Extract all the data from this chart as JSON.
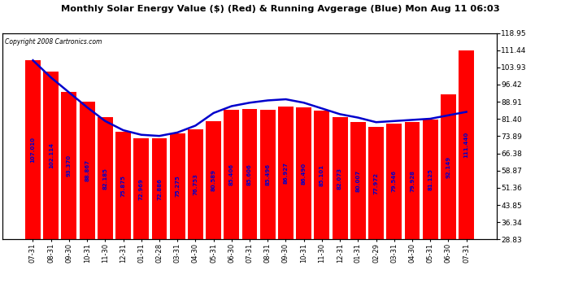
{
  "title": "Monthly Solar Energy Value ($) (Red) & Running Avgerage (Blue) Mon Aug 11 06:03",
  "copyright": "Copyright 2008 Cartronics.com",
  "categories": [
    "07-31",
    "08-31",
    "09-30",
    "10-31",
    "11-30",
    "12-31",
    "01-31",
    "02-28",
    "03-31",
    "04-30",
    "05-31",
    "06-30",
    "07-31",
    "08-31",
    "09-30",
    "10-31",
    "11-30",
    "12-31",
    "01-31",
    "02-29",
    "03-31",
    "04-30",
    "05-31",
    "06-30",
    "07-31"
  ],
  "values": [
    107.01,
    102.114,
    93.37,
    88.867,
    82.185,
    75.875,
    72.969,
    72.886,
    75.275,
    76.753,
    80.589,
    85.406,
    85.606,
    85.496,
    86.927,
    86.49,
    85.101,
    82.073,
    80.007,
    77.972,
    79.546,
    79.928,
    81.125,
    92.149,
    111.44
  ],
  "avg_values": [
    107.0,
    99.5,
    93.0,
    86.5,
    80.5,
    76.5,
    74.5,
    74.0,
    75.5,
    78.5,
    84.0,
    87.0,
    88.5,
    89.5,
    90.0,
    88.5,
    86.0,
    83.5,
    82.0,
    80.0,
    80.5,
    81.0,
    81.5,
    83.0,
    84.5
  ],
  "bar_color": "#ff0000",
  "line_color": "#0000cc",
  "bg_color": "#ffffff",
  "grid_color": "#cccccc",
  "text_color": "#0000cc",
  "title_color": "#000000",
  "copyright_color": "#000000",
  "ytick_labels": [
    "118.95",
    "111.44",
    "103.93",
    "96.42",
    "88.91",
    "81.40",
    "73.89",
    "66.38",
    "58.87",
    "51.36",
    "43.85",
    "36.34",
    "28.83"
  ],
  "ytick_values": [
    118.95,
    111.44,
    103.93,
    96.42,
    88.91,
    81.4,
    73.89,
    66.38,
    58.87,
    51.36,
    43.85,
    36.34,
    28.83
  ],
  "ymin": 28.83,
  "ymax": 118.95
}
